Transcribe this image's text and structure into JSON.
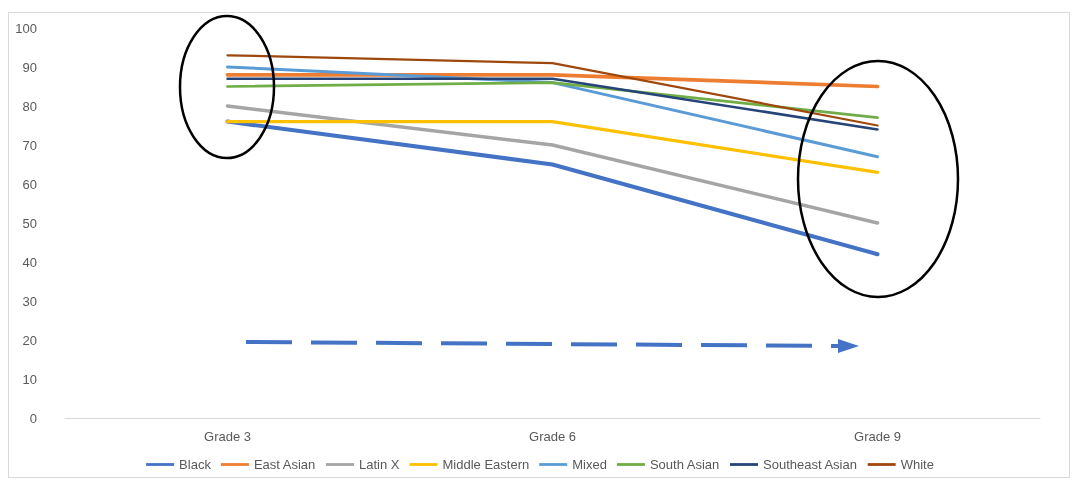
{
  "chart_data": {
    "type": "line",
    "categories": [
      "Grade 3",
      "Grade 6",
      "Grade 9"
    ],
    "series": [
      {
        "name": "Black",
        "color": "#4472c4",
        "values": [
          76,
          65,
          42
        ]
      },
      {
        "name": "East Asian",
        "color": "#ed7d31",
        "values": [
          88,
          88,
          85
        ]
      },
      {
        "name": "Latin X",
        "color": "#a5a5a5",
        "values": [
          80,
          70,
          50
        ]
      },
      {
        "name": "Middle Eastern",
        "color": "#ffc000",
        "values": [
          76,
          76,
          63
        ]
      },
      {
        "name": "Mixed",
        "color": "#5b9bd5",
        "values": [
          90,
          86,
          67
        ]
      },
      {
        "name": "South Asian",
        "color": "#70ad47",
        "values": [
          85,
          86,
          77
        ]
      },
      {
        "name": "Southeast Asian",
        "color": "#264478",
        "values": [
          87,
          87,
          74
        ]
      },
      {
        "name": "White",
        "color": "#9e480e",
        "values": [
          93,
          91,
          75
        ]
      }
    ],
    "ylim": [
      0,
      100
    ],
    "yticks": [
      0,
      10,
      20,
      30,
      40,
      50,
      60,
      70,
      80,
      90,
      100
    ],
    "grid": false,
    "legend": "bottom",
    "marker": "none",
    "line_style": "solid"
  }
}
